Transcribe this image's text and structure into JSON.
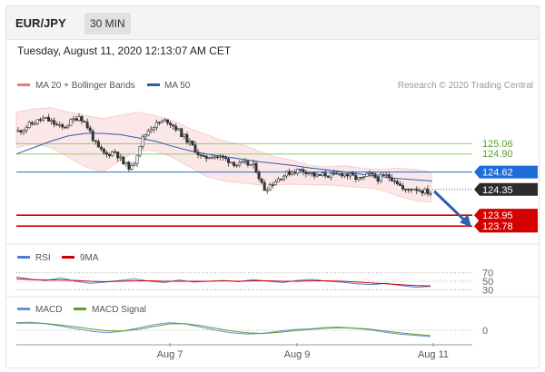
{
  "header": {
    "symbol": "EUR/JPY",
    "timeframe": "30 MIN"
  },
  "timestamp": "Tuesday, August 11, 2020 12:13:07 AM CET",
  "colors": {
    "bollinger": "#e87b7b",
    "ma50": "#2d5fae",
    "resistance_line": "#8fcf6a",
    "current_price": "#1f6ddb",
    "last_price": "#2b2b2b",
    "support": "#d40000",
    "rsi": "#4f7ed6",
    "nine_ma": "#d40000",
    "macd": "#6b8fd6",
    "macd_signal": "#5aa02c"
  },
  "chart_data": [
    {
      "type": "candlestick",
      "legend": [
        "MA 20 + Bollinger Bands",
        "MA 50"
      ],
      "credit": "Research © 2020 Trading Central",
      "x_ticks": [
        "Aug 7",
        "Aug 9",
        "Aug 11"
      ],
      "ylim": [
        123.6,
        125.6
      ],
      "levels": [
        {
          "label": "125.06",
          "value": 125.06,
          "style": "resistance"
        },
        {
          "label": "124.90",
          "value": 124.9,
          "style": "resistance"
        },
        {
          "label": "124.62",
          "value": 124.62,
          "style": "current"
        },
        {
          "label": "124.35",
          "value": 124.35,
          "style": "last"
        },
        {
          "label": "123.95",
          "value": 123.95,
          "style": "support"
        },
        {
          "label": "123.78",
          "value": 123.78,
          "style": "support"
        }
      ],
      "forecast_arrow": {
        "from": 124.35,
        "to": 123.78
      },
      "close_path": [
        125.25,
        125.33,
        125.4,
        125.45,
        125.38,
        125.3,
        125.4,
        125.5,
        125.3,
        125.0,
        124.88,
        124.95,
        124.75,
        124.68,
        125.1,
        125.3,
        125.38,
        125.42,
        125.3,
        125.15,
        125.0,
        124.82,
        124.88,
        124.85,
        124.8,
        124.73,
        124.75,
        124.7,
        124.35,
        124.45,
        124.55,
        124.62,
        124.65,
        124.63,
        124.55,
        124.58,
        124.56,
        124.6,
        124.55,
        124.5,
        124.58,
        124.52,
        124.56,
        124.5,
        124.32,
        124.38,
        124.33,
        124.3
      ],
      "ma50_path": [
        124.9,
        125.0,
        125.1,
        125.18,
        125.22,
        125.22,
        125.2,
        125.15,
        125.1,
        125.02,
        124.95,
        124.9,
        124.86,
        124.82,
        124.78,
        124.75,
        124.72,
        124.68,
        124.65,
        124.62,
        124.58,
        124.55,
        124.52,
        124.5,
        124.48
      ],
      "bb_upper": [
        125.55,
        125.6,
        125.62,
        125.55,
        125.5,
        125.45,
        125.5,
        125.55,
        125.5,
        125.42,
        125.3,
        125.2,
        125.1,
        125.05,
        124.95,
        124.85,
        124.8,
        124.72,
        124.7,
        124.72,
        124.68,
        124.66,
        124.68,
        124.66,
        124.62
      ],
      "bb_lower": [
        125.0,
        125.05,
        125.0,
        124.85,
        124.7,
        124.62,
        124.8,
        124.95,
        124.95,
        124.85,
        124.7,
        124.55,
        124.48,
        124.45,
        124.42,
        124.42,
        124.43,
        124.42,
        124.42,
        124.4,
        124.38,
        124.35,
        124.25,
        124.18,
        124.15
      ]
    },
    {
      "type": "line",
      "legend": [
        "RSI",
        "9MA"
      ],
      "y_ticks": [
        "70",
        "50",
        "30"
      ],
      "ylim": [
        20,
        80
      ],
      "series": [
        {
          "name": "RSI",
          "values": [
            60,
            55,
            52,
            58,
            50,
            45,
            48,
            52,
            56,
            50,
            47,
            53,
            48,
            50,
            52,
            49,
            54,
            50,
            47,
            52,
            55,
            50,
            48,
            44,
            42,
            45,
            40,
            36,
            38
          ]
        },
        {
          "name": "9MA",
          "values": [
            56,
            54,
            53,
            53,
            52,
            50,
            49,
            50,
            51,
            51,
            50,
            50,
            50,
            50,
            51,
            50,
            51,
            51,
            50,
            50,
            51,
            51,
            50,
            48,
            46,
            44,
            42,
            40,
            39
          ]
        }
      ]
    },
    {
      "type": "line",
      "legend": [
        "MACD",
        "MACD Signal"
      ],
      "y_ticks": [
        "0"
      ],
      "ylim": [
        -1,
        1
      ],
      "series": [
        {
          "name": "MACD",
          "values": [
            0.6,
            0.62,
            0.5,
            0.3,
            0.1,
            -0.1,
            -0.2,
            -0.05,
            0.2,
            0.45,
            0.6,
            0.5,
            0.25,
            0.0,
            -0.2,
            -0.3,
            -0.25,
            -0.1,
            0.05,
            0.1,
            0.2,
            0.25,
            0.15,
            0.05,
            -0.15,
            -0.3,
            -0.4,
            -0.5
          ]
        },
        {
          "name": "MACD Signal",
          "values": [
            0.55,
            0.57,
            0.52,
            0.4,
            0.25,
            0.08,
            -0.05,
            -0.05,
            0.08,
            0.3,
            0.5,
            0.52,
            0.38,
            0.15,
            -0.05,
            -0.2,
            -0.25,
            -0.18,
            -0.05,
            0.05,
            0.15,
            0.2,
            0.18,
            0.1,
            -0.05,
            -0.2,
            -0.32,
            -0.42
          ]
        }
      ]
    }
  ]
}
